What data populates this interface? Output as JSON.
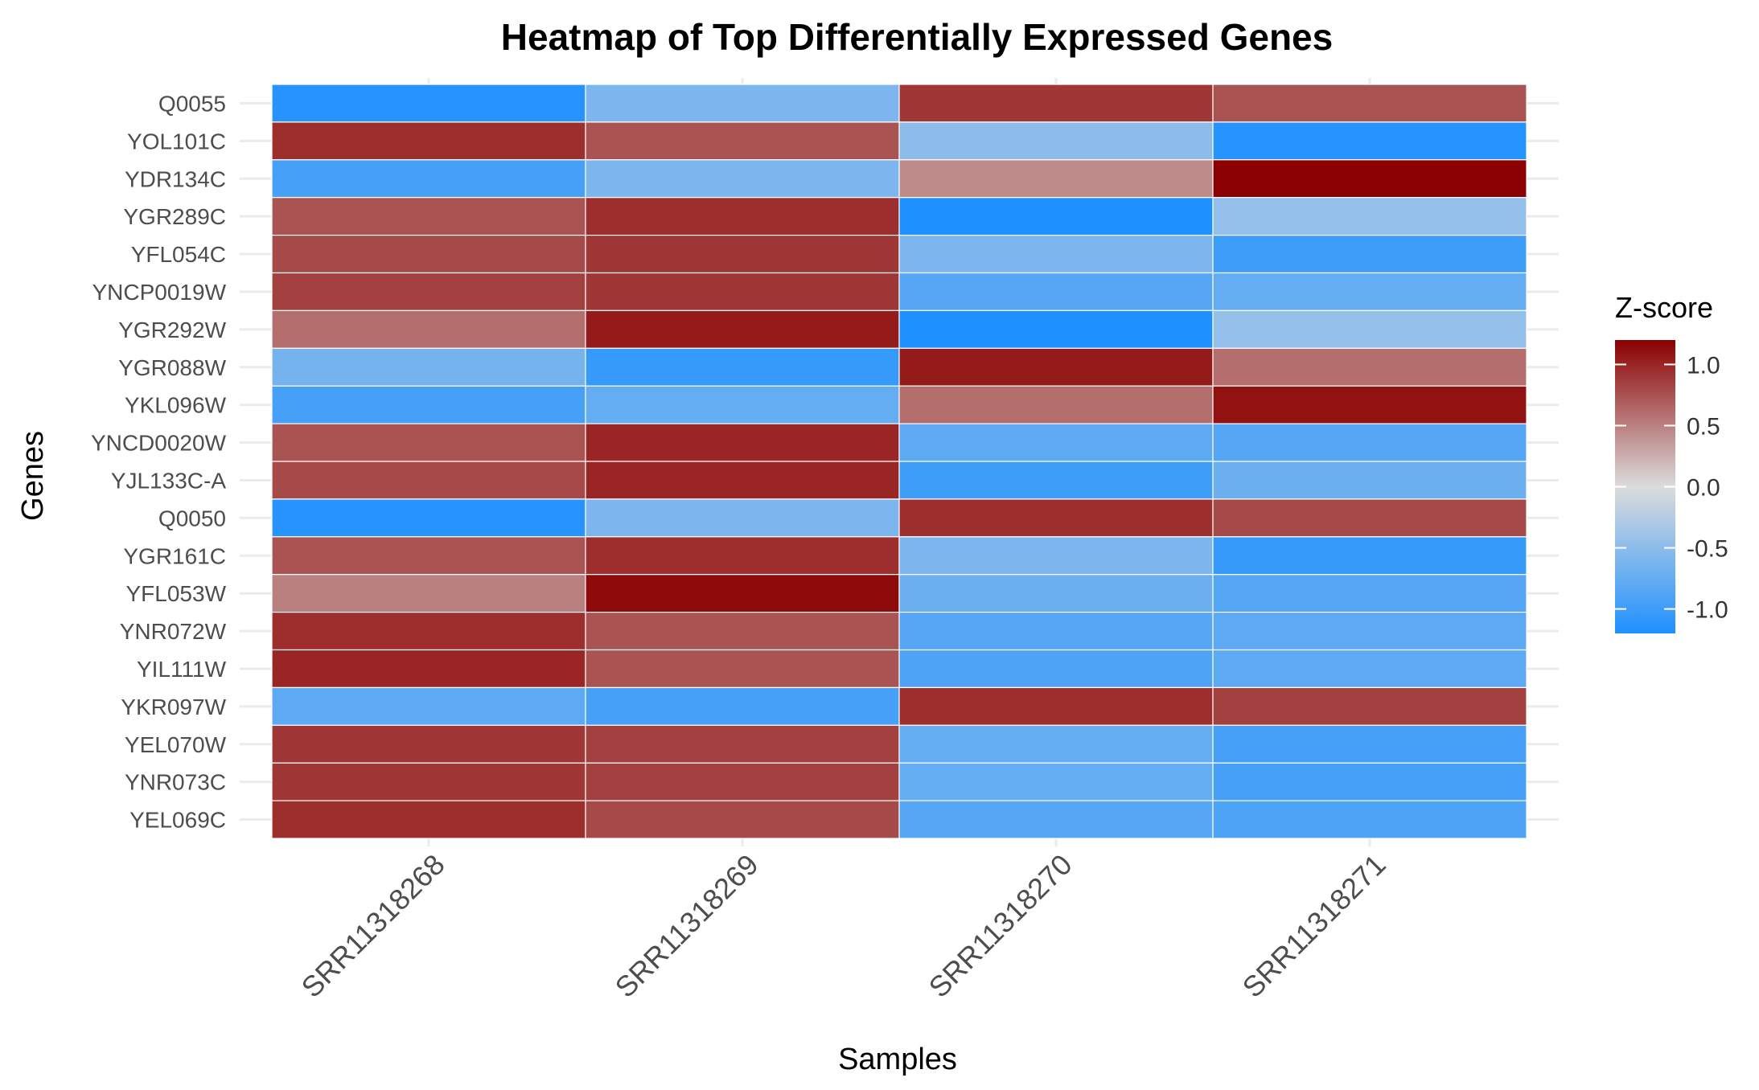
{
  "chart_data": {
    "type": "heatmap",
    "title": "Heatmap of Top Differentially Expressed Genes",
    "xlabel": "Samples",
    "ylabel": "Genes",
    "x": [
      "SRR11318268",
      "SRR11318269",
      "SRR11318270",
      "SRR11318271"
    ],
    "y": [
      "Q0055",
      "YOL101C",
      "YDR134C",
      "YGR289C",
      "YFL054C",
      "YNCP0019W",
      "YGR292W",
      "YGR088W",
      "YKL096W",
      "YNCD0020W",
      "YJL133C-A",
      "Q0050",
      "YGR161C",
      "YFL053W",
      "YNR072W",
      "YIL111W",
      "YKR097W",
      "YEL070W",
      "YNR073C",
      "YEL069C"
    ],
    "values": [
      [
        -1.15,
        -0.6,
        0.9,
        0.75
      ],
      [
        0.95,
        0.75,
        -0.5,
        -1.15
      ],
      [
        -0.95,
        -0.6,
        0.45,
        1.2
      ],
      [
        0.75,
        0.95,
        -1.2,
        -0.45
      ],
      [
        0.8,
        0.9,
        -0.6,
        -1.0
      ],
      [
        0.85,
        0.9,
        -0.85,
        -0.75
      ],
      [
        0.6,
        1.05,
        -1.2,
        -0.45
      ],
      [
        -0.65,
        -1.05,
        1.05,
        0.6
      ],
      [
        -0.95,
        -0.75,
        0.6,
        1.1
      ],
      [
        0.75,
        1.0,
        -0.8,
        -0.85
      ],
      [
        0.8,
        1.0,
        -1.0,
        -0.7
      ],
      [
        -1.15,
        -0.6,
        0.95,
        0.8
      ],
      [
        0.75,
        0.95,
        -0.6,
        -1.05
      ],
      [
        0.5,
        1.15,
        -0.7,
        -0.85
      ],
      [
        0.95,
        0.75,
        -0.85,
        -0.8
      ],
      [
        1.0,
        0.75,
        -0.9,
        -0.8
      ],
      [
        -0.8,
        -0.95,
        0.95,
        0.85
      ],
      [
        0.9,
        0.85,
        -0.75,
        -0.95
      ],
      [
        0.9,
        0.85,
        -0.75,
        -0.95
      ],
      [
        0.95,
        0.8,
        -0.85,
        -0.9
      ]
    ],
    "legend": {
      "title": "Z-score",
      "ticks": [
        1.0,
        0.5,
        0.0,
        -0.5,
        -1.0
      ],
      "tick_labels": [
        "1.0",
        "0.5",
        "0.0",
        "-0.5",
        "-1.0"
      ],
      "range": [
        -1.2,
        1.2
      ],
      "placement": "right"
    },
    "colors": {
      "low": "#1e90ff",
      "mid": "#dcdcdc",
      "high": "#8b0000",
      "grid": "#ebebeb",
      "tile_border": "#ffffff",
      "axis_text": "#4d4d4d",
      "title_text": "#000000"
    },
    "grid": true
  }
}
